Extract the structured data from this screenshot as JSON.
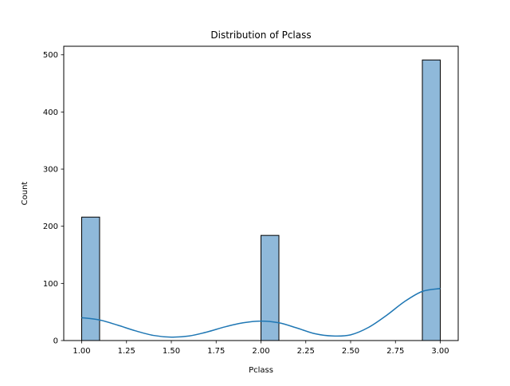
{
  "chart_data": {
    "type": "bar",
    "title": "Distribution of Pclass",
    "xlabel": "Pclass",
    "ylabel": "Count",
    "xlim": [
      0.9,
      3.1
    ],
    "ylim": [
      0,
      515
    ],
    "x_ticks": [
      1.0,
      1.25,
      1.5,
      1.75,
      2.0,
      2.25,
      2.5,
      2.75,
      3.0
    ],
    "x_tick_labels": [
      "1.00",
      "1.25",
      "1.50",
      "1.75",
      "2.00",
      "2.25",
      "2.50",
      "2.75",
      "3.00"
    ],
    "y_ticks": [
      0,
      100,
      200,
      300,
      400,
      500
    ],
    "y_tick_labels": [
      "0",
      "100",
      "200",
      "300",
      "400",
      "500"
    ],
    "bins": [
      {
        "x0": 1.0,
        "x1": 1.1,
        "count": 216
      },
      {
        "x0": 2.0,
        "x1": 2.1,
        "count": 184
      },
      {
        "x0": 2.9,
        "x1": 3.0,
        "count": 491
      }
    ],
    "kde": {
      "x": [
        1.0,
        1.1,
        1.2,
        1.3,
        1.4,
        1.5,
        1.6,
        1.7,
        1.8,
        1.9,
        2.0,
        2.1,
        2.2,
        2.3,
        2.4,
        2.5,
        2.6,
        2.7,
        2.8,
        2.9,
        3.0
      ],
      "y": [
        40,
        36,
        27,
        17,
        9,
        6,
        8,
        15,
        24,
        31,
        34,
        31,
        22,
        12,
        8,
        10,
        23,
        44,
        68,
        86,
        91
      ]
    },
    "grid": false,
    "legend": "none",
    "colors": {
      "bar_fill": "#8fb9da",
      "bar_edge": "#000000",
      "kde_line": "#1f77b4"
    }
  }
}
